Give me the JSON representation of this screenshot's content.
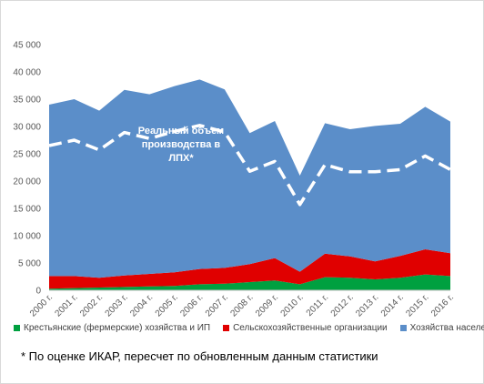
{
  "chart_data": {
    "type": "area",
    "categories": [
      "2000 г.",
      "2001 г.",
      "2002 г.",
      "2003 г.",
      "2004 г.",
      "2005 г.",
      "2006 г.",
      "2007 г.",
      "2008 г.",
      "2009 г.",
      "2010 г.",
      "2011 г.",
      "2012 г.",
      "2013 г.",
      "2014 г.",
      "2015 г.",
      "2016 г."
    ],
    "stacked": true,
    "series": [
      {
        "name": "Крестьянские (фермерские) хозяйства и ИП",
        "color": "#00a040",
        "values": [
          300,
          400,
          500,
          600,
          700,
          800,
          1100,
          1200,
          1500,
          1800,
          1100,
          2400,
          2300,
          2000,
          2300,
          2900,
          2600
        ]
      },
      {
        "name": "Сельскохозяйственные организации",
        "color": "#e00000",
        "values": [
          2300,
          2200,
          1800,
          2100,
          2300,
          2500,
          2800,
          2900,
          3300,
          4100,
          2300,
          4300,
          3900,
          3300,
          4000,
          4600,
          4200
        ]
      },
      {
        "name": "Хозяйства населения",
        "color": "#5b8ec9",
        "values": [
          31400,
          32400,
          30600,
          34000,
          32900,
          34100,
          34700,
          32700,
          24000,
          25100,
          17600,
          23900,
          23300,
          24800,
          24200,
          26100,
          24100
        ]
      }
    ],
    "dashed_line": {
      "annotation": "Реальный объем производства в ЛПХ*",
      "color": "#ffffff",
      "values": [
        26500,
        27500,
        25700,
        28900,
        27800,
        29100,
        30200,
        29000,
        21800,
        23600,
        15700,
        23000,
        21700,
        21700,
        22100,
        24600,
        22100
      ]
    },
    "yticks": [
      "0",
      "5 000",
      "10 000",
      "15 000",
      "20 000",
      "25 000",
      "30 000",
      "35 000",
      "40 000",
      "45 000"
    ],
    "ylim": [
      0,
      45000
    ],
    "legend_position": "bottom",
    "grid": false
  },
  "footnote": "* По оценке ИКАР, пересчет по обновленным данным статистики"
}
